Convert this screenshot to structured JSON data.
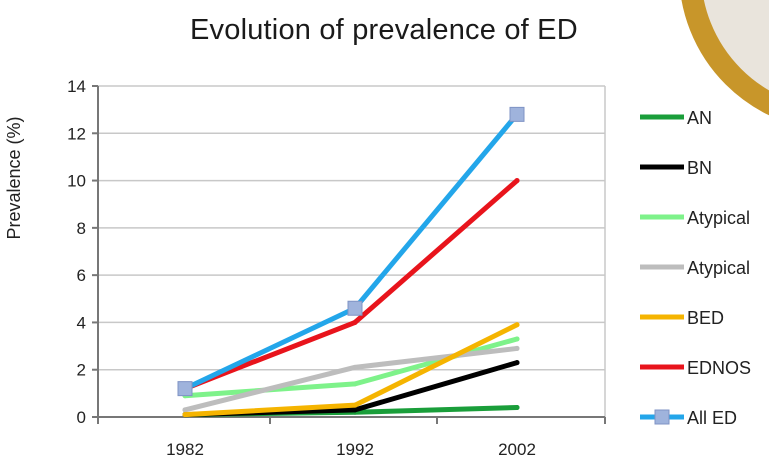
{
  "chart_data": {
    "type": "line",
    "title": "Evolution of prevalence of ED",
    "xlabel": "",
    "ylabel": "Prevalence (%)",
    "categories": [
      "1982",
      "1992",
      "2002"
    ],
    "ylim": [
      0,
      14
    ],
    "yticks": [
      "0",
      "2",
      "4",
      "6",
      "8",
      "10",
      "12",
      "14"
    ],
    "grid": true,
    "legend_position": "right",
    "series": [
      {
        "name": "AN",
        "color": "#1a9e3a",
        "values": [
          0.1,
          0.2,
          0.4
        ]
      },
      {
        "name": "BN",
        "color": "#000000",
        "values": [
          0.1,
          0.3,
          2.3
        ]
      },
      {
        "name": "Atypical",
        "color": "#7ef28a",
        "values": [
          0.9,
          1.4,
          3.3
        ]
      },
      {
        "name": "Atypical",
        "color": "#bdbdbd",
        "values": [
          0.3,
          2.1,
          2.9
        ]
      },
      {
        "name": "BED",
        "color": "#f5b400",
        "values": [
          0.1,
          0.5,
          3.9
        ]
      },
      {
        "name": "EDNOS",
        "color": "#e8141c",
        "values": [
          1.2,
          4.0,
          10.0
        ]
      },
      {
        "name": "All ED",
        "color": "#23a6ea",
        "marker": "square",
        "values": [
          1.2,
          4.6,
          12.8
        ]
      }
    ]
  },
  "decor": {
    "ring_color": "#c8962a"
  }
}
